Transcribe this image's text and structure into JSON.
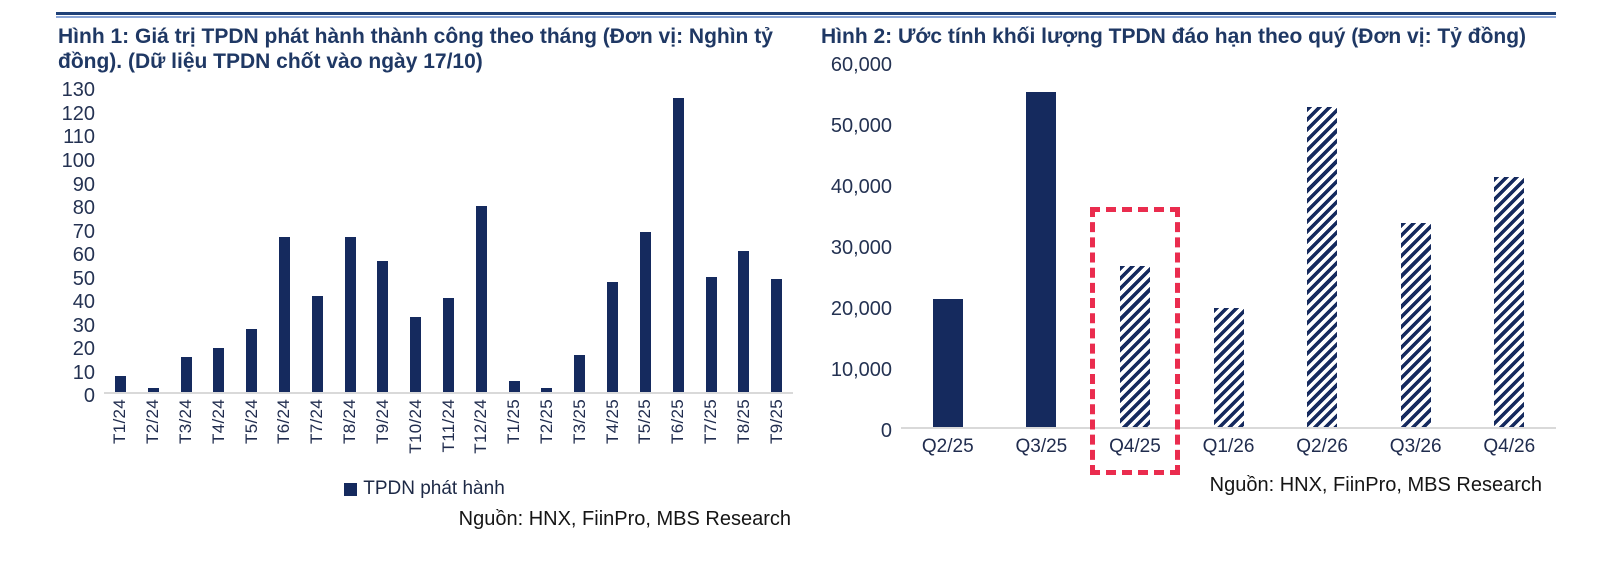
{
  "page": {
    "type": "report-figure-pair",
    "background": "#ffffff",
    "rule_colors": {
      "dark": "#1f4178",
      "light": "#8aa5d6"
    }
  },
  "chart_data": [
    {
      "type": "bar",
      "title": "Hình 1: Giá trị TPDN phát hành thành công theo tháng (Đơn vị: Nghìn tỷ đồng). (Dữ liệu TPDN chốt vào ngày 17/10)",
      "categories": [
        "T1/24",
        "T2/24",
        "T3/24",
        "T4/24",
        "T5/24",
        "T6/24",
        "T7/24",
        "T8/24",
        "T9/24",
        "T10/24",
        "T11/24",
        "T12/24",
        "T1/25",
        "T2/25",
        "T3/25",
        "T4/25",
        "T5/25",
        "T6/25",
        "T7/25",
        "T8/25",
        "T9/25"
      ],
      "values": [
        7,
        2,
        15,
        19,
        27,
        66,
        41,
        66,
        56,
        32,
        40,
        79,
        5,
        2,
        16,
        47,
        68,
        125,
        49,
        60,
        48
      ],
      "series_name": "TPDN phát hành",
      "unit": "Nghìn tỷ đồng",
      "ylim": [
        0,
        130
      ],
      "ytick_step": 10,
      "grid": false,
      "legend_position": "bottom",
      "bar_color": "#152a5e",
      "axis_line_color": "#d9d9d9",
      "source": "Nguồn: HNX, FiinPro, MBS Research"
    },
    {
      "type": "bar",
      "title": "Hình 2: Ước tính khối lượng TPDN đáo hạn theo quý (Đơn vị: Tỷ đồng)",
      "categories": [
        "Q2/25",
        "Q3/25",
        "Q4/25",
        "Q1/26",
        "Q2/26",
        "Q3/26",
        "Q4/26"
      ],
      "values": [
        21000,
        55000,
        26500,
        19500,
        52500,
        33500,
        41000
      ],
      "bar_styles": [
        "solid",
        "solid",
        "hatched",
        "hatched",
        "hatched",
        "hatched",
        "hatched"
      ],
      "unit": "Tỷ đồng",
      "ylim": [
        0,
        60000
      ],
      "ytick_step": 10000,
      "grid": false,
      "bar_color": "#152a5e",
      "axis_line_color": "#d9d9d9",
      "highlight": {
        "target_category": "Q4/25",
        "shape": "dashed-rectangle",
        "color": "#ea2c4e",
        "box_top_value": 36400
      },
      "source": "Nguồn: HNX, FiinPro, MBS Research"
    }
  ]
}
